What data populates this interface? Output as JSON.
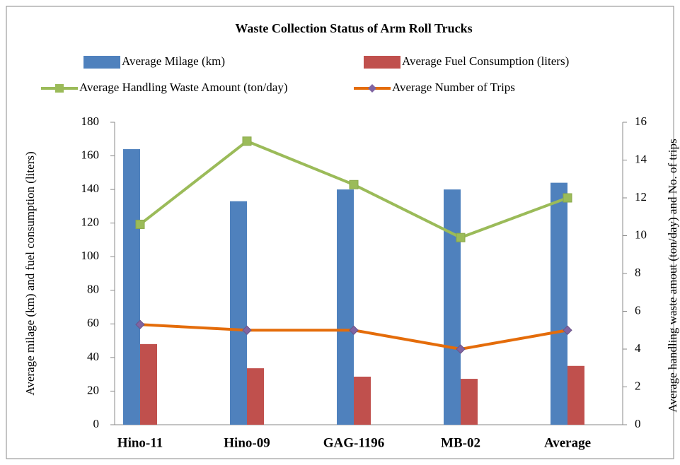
{
  "chart_data": {
    "type": "bar_line",
    "title": "Waste Collection Status of Arm  Roll Trucks",
    "categories": [
      "Hino-11",
      "Hino-09",
      "GAG-1196",
      "MB-02",
      "Average"
    ],
    "ylabel": "Average milage (km) and fuel consumption (liters)",
    "y2label": "Average handling waste amout (ton/day) and No. of trips",
    "ylim": [
      0,
      180
    ],
    "yticks": [
      0,
      20,
      40,
      60,
      80,
      100,
      120,
      140,
      160,
      180
    ],
    "y2lim": [
      0,
      16
    ],
    "y2ticks": [
      0,
      2,
      4,
      6,
      8,
      10,
      12,
      14,
      16
    ],
    "series": [
      {
        "name": "Average Milage (km)",
        "kind": "bar",
        "color": "#4f81bd",
        "values": [
          164,
          133,
          140,
          140,
          144
        ]
      },
      {
        "name": "Average Fuel Consumption (liters)",
        "kind": "bar",
        "color": "#c0504d",
        "values": [
          48,
          33.6,
          28.6,
          27.3,
          35
        ]
      },
      {
        "name": "Average Handling  Waste Amount (ton/day)",
        "kind": "line",
        "axis": "y2",
        "marker": "square",
        "color": "#9bbb59",
        "values": [
          10.6,
          15.0,
          12.7,
          9.9,
          12.0
        ]
      },
      {
        "name": "Average Number of Trips",
        "kind": "line",
        "axis": "y2",
        "marker": "diamond",
        "color": "#e46c0a",
        "values": [
          5.3,
          5.0,
          5.0,
          4.0,
          5.0
        ]
      }
    ]
  }
}
